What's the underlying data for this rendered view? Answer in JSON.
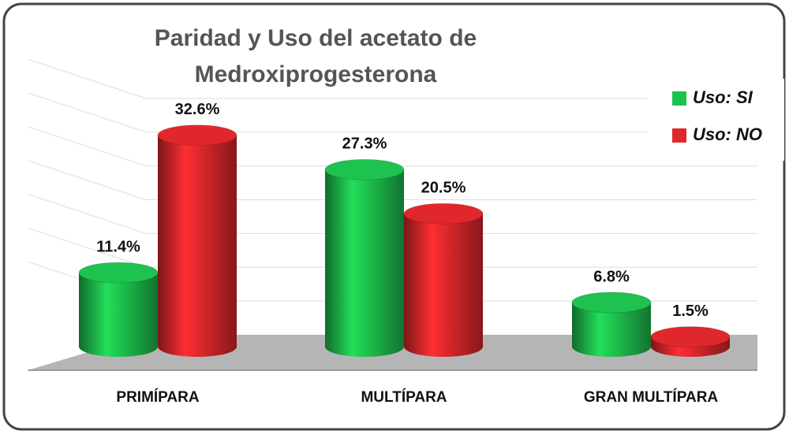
{
  "chart_data": {
    "type": "bar3d",
    "title": [
      "Paridad y Uso del acetato de",
      "Medroxiprogesterona"
    ],
    "categories": [
      "PRIMÍPARA",
      "MULTÍPARA",
      "GRAN MULTÍPARA"
    ],
    "series": [
      {
        "name": "Uso: SI",
        "color": "#1ec24e",
        "values": [
          11.4,
          27.3,
          6.8
        ],
        "value_labels": [
          "11.4%",
          "27.3%",
          "6.8%"
        ]
      },
      {
        "name": "Uso: NO",
        "color": "#e0282c",
        "values": [
          32.6,
          20.5,
          1.5
        ],
        "value_labels": [
          "32.6%",
          "20.5%",
          "1.5%"
        ]
      }
    ],
    "ylim": [
      0,
      35
    ],
    "yticks": [
      0,
      5,
      10,
      15,
      20,
      25,
      30,
      35
    ],
    "grid": true,
    "legend": "right"
  }
}
